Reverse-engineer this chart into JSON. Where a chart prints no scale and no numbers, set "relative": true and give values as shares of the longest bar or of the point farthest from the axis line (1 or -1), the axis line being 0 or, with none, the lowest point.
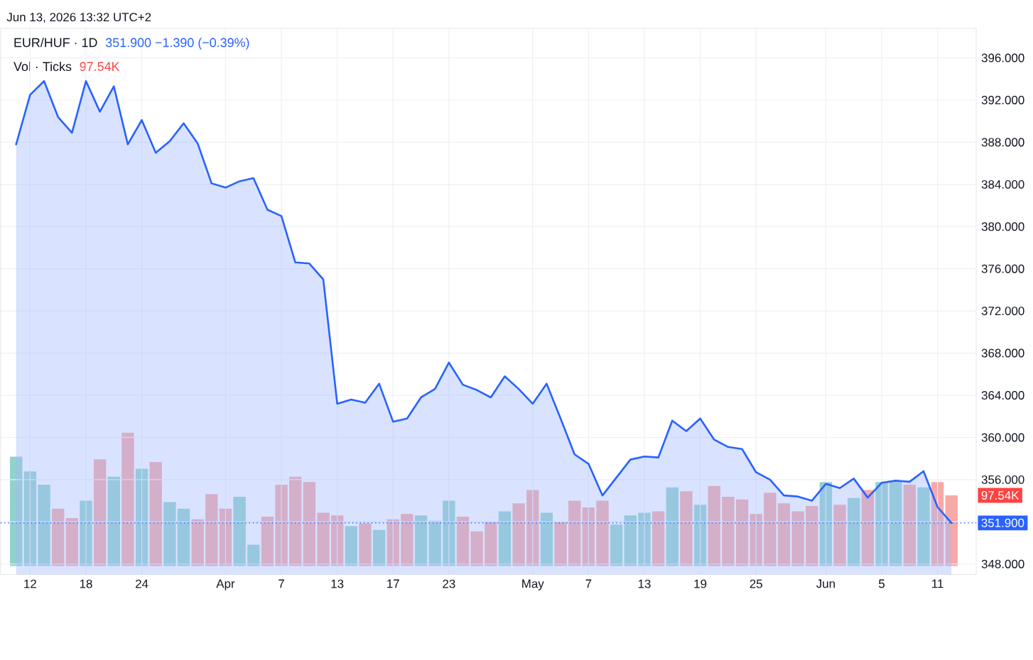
{
  "chart_data": [
    {
      "type": "area",
      "title": "EUR/HUF · 1D",
      "subtitle": "351.900 −1.390 (−0.39%)",
      "annotations": [
        "Jun 13, 2026 13:32 UTC+2"
      ],
      "categories": [
        null,
        "12",
        null,
        null,
        null,
        "18",
        null,
        null,
        null,
        "24",
        null,
        null,
        null,
        null,
        null,
        "Apr",
        null,
        null,
        null,
        "7",
        null,
        null,
        null,
        "13",
        null,
        null,
        null,
        "17",
        null,
        null,
        null,
        "23",
        null,
        null,
        null,
        null,
        null,
        "May",
        null,
        null,
        null,
        "7",
        null,
        null,
        null,
        "13",
        null,
        null,
        null,
        "19",
        null,
        null,
        null,
        "25",
        null,
        null,
        null,
        null,
        "Jun",
        null,
        null,
        null,
        "5",
        null,
        null,
        null,
        "11",
        null
      ],
      "series": [
        {
          "color": "#2962ff",
          "values": [
            387.8,
            392.5,
            393.8,
            390.4,
            388.9,
            393.8,
            390.9,
            393.3,
            387.8,
            390.1,
            387.0,
            388.1,
            389.8,
            387.9,
            384.1,
            383.7,
            384.3,
            384.6,
            381.6,
            381.0,
            376.6,
            376.5,
            375.0,
            363.2,
            363.6,
            363.3,
            365.1,
            361.5,
            361.8,
            363.8,
            364.6,
            367.1,
            365.0,
            364.5,
            363.8,
            365.8,
            364.6,
            363.2,
            365.1,
            361.8,
            358.4,
            357.5,
            354.5,
            356.2,
            357.9,
            358.2,
            358.1,
            361.6,
            360.6,
            361.8,
            359.8,
            359.1,
            358.9,
            356.7,
            356.0,
            354.5,
            354.4,
            354.0,
            355.6,
            355.2,
            356.1,
            354.3,
            355.7,
            355.9,
            355.8,
            356.8,
            353.4,
            351.9
          ]
        }
      ],
      "ylim": [
        347,
        398.8
      ],
      "yticks": [
        {
          "value": 348,
          "label": "348.000"
        },
        {
          "value": 352,
          "label": null
        },
        {
          "value": 356,
          "label": "356.000"
        },
        {
          "value": 360,
          "label": "360.000"
        },
        {
          "value": 364,
          "label": "364.000"
        },
        {
          "value": 368,
          "label": "368.000"
        },
        {
          "value": 372,
          "label": "372.000"
        },
        {
          "value": 376,
          "label": "376.000"
        },
        {
          "value": 380,
          "label": "380.000"
        },
        {
          "value": 384,
          "label": "384.000"
        },
        {
          "value": 388,
          "label": "388.000"
        },
        {
          "value": 392,
          "label": "392.000"
        },
        {
          "value": 396,
          "label": "396.000"
        }
      ],
      "ref_lines": [
        {
          "axis": "y",
          "value": 351.9,
          "label": "351.900",
          "color": "#2962ff",
          "line_style": "dotted"
        }
      ],
      "grid": true
    },
    {
      "type": "bar",
      "title": "Vol · Ticks",
      "subtitle": "97.54K",
      "relative": true,
      "annotations": [
        "97.54K"
      ],
      "categories": [
        null,
        null,
        null,
        null,
        null,
        null,
        null,
        null,
        null,
        null,
        null,
        null,
        null,
        null,
        null,
        null,
        null,
        null,
        null,
        null,
        null,
        null,
        null,
        null,
        null,
        null,
        null,
        null,
        null,
        null,
        null,
        null,
        null,
        null,
        null,
        null,
        null,
        null,
        null,
        null,
        null,
        null,
        null,
        null,
        null,
        null,
        null,
        null,
        null,
        null,
        null,
        null,
        null,
        null,
        null,
        null,
        null,
        null,
        null,
        null,
        null,
        null,
        null,
        null,
        null,
        null,
        null,
        null
      ],
      "values": [
        0.82,
        0.71,
        0.61,
        0.43,
        0.36,
        0.49,
        0.8,
        0.67,
        1,
        0.73,
        0.78,
        0.48,
        0.43,
        0.35,
        0.54,
        0.43,
        0.52,
        0.16,
        0.37,
        0.61,
        0.67,
        0.63,
        0.4,
        0.38,
        0.3,
        0.32,
        0.27,
        0.35,
        0.39,
        0.38,
        0.34,
        0.49,
        0.37,
        0.26,
        0.33,
        0.41,
        0.47,
        0.57,
        0.4,
        0.33,
        0.49,
        0.44,
        0.49,
        0.31,
        0.38,
        0.4,
        0.41,
        0.59,
        0.56,
        0.46,
        0.6,
        0.52,
        0.5,
        0.39,
        0.55,
        0.47,
        0.41,
        0.45,
        0.63,
        0.46,
        0.51,
        0.57,
        0.63,
        0.63,
        0.61,
        0.59,
        0.63,
        0.53
      ],
      "colors": [
        "#92d2cc",
        "#92d2cc",
        "#92d2cc",
        "#f7a9a7",
        "#f7a9a7",
        "#92d2cc",
        "#f7a9a7",
        "#92d2cc",
        "#f7a9a7",
        "#92d2cc",
        "#f7a9a7",
        "#92d2cc",
        "#92d2cc",
        "#f7a9a7",
        "#f7a9a7",
        "#f7a9a7",
        "#92d2cc",
        "#92d2cc",
        "#f7a9a7",
        "#f7a9a7",
        "#f7a9a7",
        "#f7a9a7",
        "#f7a9a7",
        "#f7a9a7",
        "#92d2cc",
        "#f7a9a7",
        "#92d2cc",
        "#f7a9a7",
        "#f7a9a7",
        "#92d2cc",
        "#92d2cc",
        "#92d2cc",
        "#f7a9a7",
        "#f7a9a7",
        "#f7a9a7",
        "#92d2cc",
        "#f7a9a7",
        "#f7a9a7",
        "#92d2cc",
        "#f7a9a7",
        "#f7a9a7",
        "#f7a9a7",
        "#f7a9a7",
        "#92d2cc",
        "#92d2cc",
        "#92d2cc",
        "#f7a9a7",
        "#92d2cc",
        "#f7a9a7",
        "#92d2cc",
        "#f7a9a7",
        "#f7a9a7",
        "#f7a9a7",
        "#f7a9a7",
        "#f7a9a7",
        "#f7a9a7",
        "#f7a9a7",
        "#f7a9a7",
        "#92d2cc",
        "#f7a9a7",
        "#92d2cc",
        "#f7a9a7",
        "#92d2cc",
        "#92d2cc",
        "#f7a9a7",
        "#92d2cc",
        "#f7a9a7",
        "#f7a9a7"
      ]
    }
  ]
}
